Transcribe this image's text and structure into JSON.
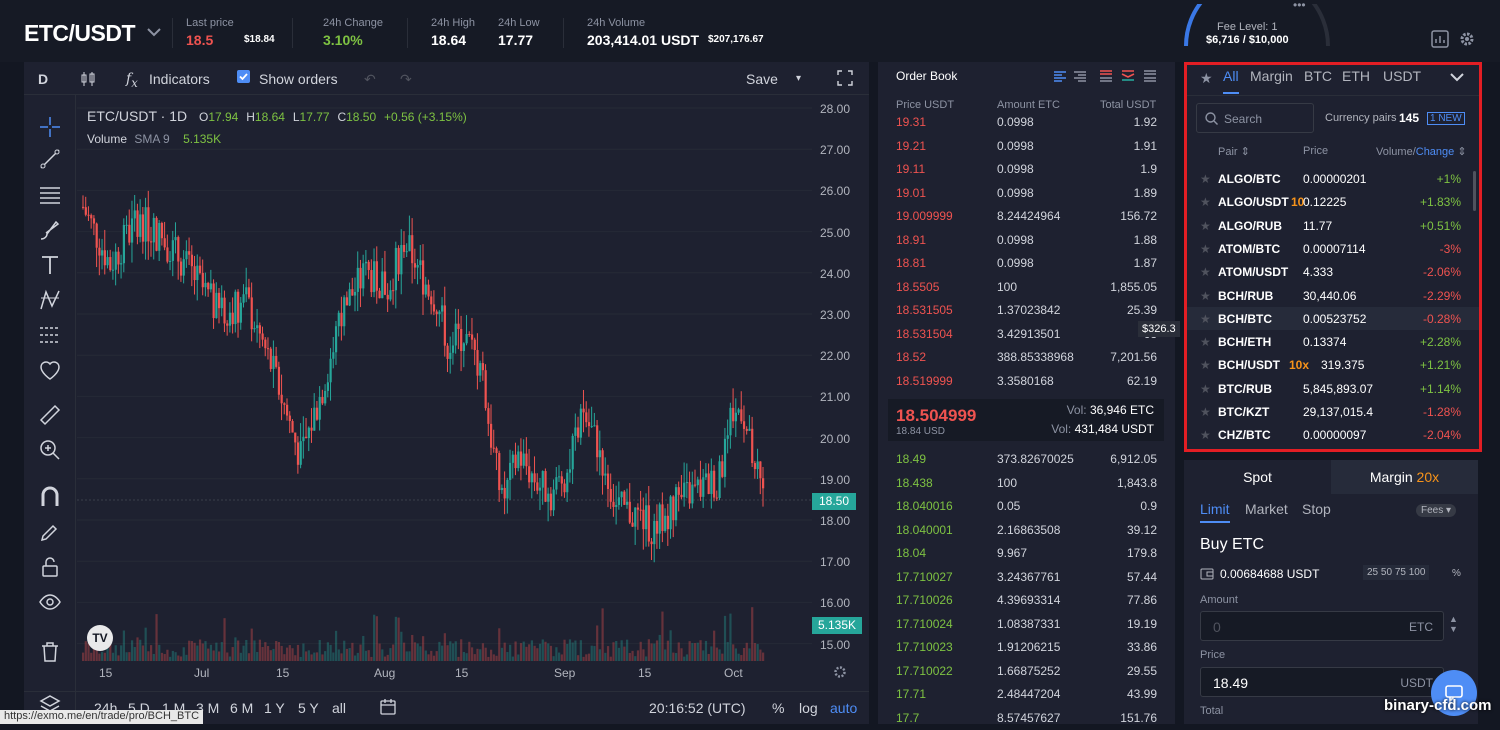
{
  "header": {
    "pair": "ETC/USDT",
    "last_price_label": "Last price",
    "last_price": "18.5",
    "last_price_usd": "$18.84",
    "change_label": "24h Change",
    "change": "3.10%",
    "high_label": "24h High",
    "high": "18.64",
    "low_label": "24h Low",
    "low": "17.77",
    "volume_label": "24h Volume",
    "volume": "203,414.01 USDT",
    "volume_usd": "$207,176.67",
    "fee_level": "Fee Level: 1",
    "fee_progress": "$6,716 / $10,000",
    "fee_fraction": 0.67,
    "more": "•••"
  },
  "chart": {
    "interval": "D",
    "indicators": "Indicators",
    "show_orders": "Show orders",
    "save": "Save",
    "legend": {
      "symbol": "ETC/USDT · 1D",
      "o_lbl": "O",
      "o": "17.94",
      "h_lbl": "H",
      "h": "18.64",
      "l_lbl": "L",
      "l": "17.77",
      "c_lbl": "C",
      "c": "18.50",
      "chg": "+0.56 (+3.15%)"
    },
    "volume_legend": {
      "label": "Volume",
      "sma": "SMA 9",
      "value": "5.135K"
    },
    "yticks": [
      "28.00",
      "27.00",
      "26.00",
      "25.00",
      "24.00",
      "23.00",
      "22.00",
      "21.00",
      "20.00",
      "19.00",
      "18.00",
      "17.00",
      "16.00",
      "15.00"
    ],
    "price_marker": "18.50",
    "volume_marker": "5.135K",
    "xticks": [
      "15",
      "Jul",
      "15",
      "Aug",
      "15",
      "Sep",
      "15",
      "Oct"
    ],
    "ranges": [
      "24h",
      "5 D",
      "1 M",
      "3 M",
      "6 M",
      "1 Y",
      "5 Y",
      "all"
    ],
    "clock": "20:16:52 (UTC)",
    "pct": "%",
    "log": "log",
    "auto": "auto",
    "url": "https://exmo.me/en/trade/pro/BCH_BTC",
    "colors": {
      "up": "#26a69a",
      "down": "#ef5350"
    }
  },
  "orderbook": {
    "title": "Order Book",
    "headers": [
      "Price USDT",
      "Amount ETC",
      "Total USDT"
    ],
    "asks": [
      [
        "19.31",
        "0.0998",
        "1.92"
      ],
      [
        "19.21",
        "0.0998",
        "1.91"
      ],
      [
        "19.11",
        "0.0998",
        "1.9"
      ],
      [
        "19.01",
        "0.0998",
        "1.89"
      ],
      [
        "19.009999",
        "8.24424964",
        "156.72"
      ],
      [
        "18.91",
        "0.0998",
        "1.88"
      ],
      [
        "18.81",
        "0.0998",
        "1.87"
      ],
      [
        "18.5505",
        "100",
        "1,855.05"
      ],
      [
        "18.531505",
        "1.37023842",
        "25.39"
      ],
      [
        "18.531504",
        "3.42913501",
        "63"
      ],
      [
        "18.52",
        "388.85338968",
        "7,201.56"
      ],
      [
        "18.519999",
        "3.3580168",
        "62.19"
      ]
    ],
    "mid_price": "18.504999",
    "mid_usd": "18.84 USD",
    "vol_label1": "Vol:",
    "vol1": "36,946 ETC",
    "vol_label2": "Vol:",
    "vol2": "431,484 USDT",
    "tooltip": "$326.3",
    "bids": [
      [
        "18.49",
        "373.82670025",
        "6,912.05"
      ],
      [
        "18.438",
        "100",
        "1,843.8"
      ],
      [
        "18.040016",
        "0.05",
        "0.9"
      ],
      [
        "18.040001",
        "2.16863508",
        "39.12"
      ],
      [
        "18.04",
        "9.967",
        "179.8"
      ],
      [
        "17.710027",
        "3.24367761",
        "57.44"
      ],
      [
        "17.710026",
        "4.39693314",
        "77.86"
      ],
      [
        "17.710024",
        "1.08387331",
        "19.19"
      ],
      [
        "17.710023",
        "1.91206215",
        "33.86"
      ],
      [
        "17.710022",
        "1.66875252",
        "29.55"
      ],
      [
        "17.71",
        "2.48447204",
        "43.99"
      ],
      [
        "17.7",
        "8.57457627",
        "151.76"
      ]
    ]
  },
  "markets": {
    "tabs": [
      "All",
      "Margin",
      "BTC",
      "ETH",
      "USDT"
    ],
    "search_placeholder": "Search",
    "pairs_label": "Currency pairs",
    "pairs_count": "145",
    "new_badge": "1 NEW",
    "col_pair": "Pair",
    "col_price": "Price",
    "col_volume": "Volume/",
    "col_change": "Change",
    "rows": [
      {
        "pair": "ALGO/BTC",
        "lev": "",
        "price": "0.00000201",
        "chg": "+1%",
        "up": true
      },
      {
        "pair": "ALGO/USDT",
        "lev": "10",
        "price": "0.12225",
        "chg": "+1.83%",
        "up": true
      },
      {
        "pair": "ALGO/RUB",
        "lev": "",
        "price": "11.77",
        "chg": "+0.51%",
        "up": true
      },
      {
        "pair": "ATOM/BTC",
        "lev": "",
        "price": "0.00007114",
        "chg": "-3%",
        "up": false
      },
      {
        "pair": "ATOM/USDT",
        "lev": "",
        "price": "4.333",
        "chg": "-2.06%",
        "up": false
      },
      {
        "pair": "BCH/RUB",
        "lev": "",
        "price": "30,440.06",
        "chg": "-2.29%",
        "up": false
      },
      {
        "pair": "BCH/BTC",
        "lev": "",
        "price": "0.00523752",
        "chg": "-0.28%",
        "up": false
      },
      {
        "pair": "BCH/ETH",
        "lev": "",
        "price": "0.13374",
        "chg": "+2.28%",
        "up": true
      },
      {
        "pair": "BCH/USDT",
        "lev": "10x",
        "price": "319.375",
        "chg": "+1.21%",
        "up": true
      },
      {
        "pair": "BTC/RUB",
        "lev": "",
        "price": "5,845,893.07",
        "chg": "+1.14%",
        "up": true
      },
      {
        "pair": "BTC/KZT",
        "lev": "",
        "price": "29,137,015.4",
        "chg": "-1.28%",
        "up": false
      },
      {
        "pair": "CHZ/BTC",
        "lev": "",
        "price": "0.00000097",
        "chg": "-2.04%",
        "up": false
      }
    ]
  },
  "trade": {
    "spot": "Spot",
    "margin": "Margin",
    "margin_lev": "20x",
    "types": [
      "Limit",
      "Market",
      "Stop"
    ],
    "fees": "Fees",
    "buy_title": "Buy ETC",
    "balance": "0.00684688 USDT",
    "pcts": [
      "25",
      "50",
      "75",
      "100"
    ],
    "pct_sign": "%",
    "amount_label": "Amount",
    "amount_value": "0",
    "amount_unit": "ETC",
    "price_label": "Price",
    "price_value": "18.49",
    "price_unit": "USDT",
    "total_label": "Total"
  },
  "watermark": "binary-cfd.com"
}
